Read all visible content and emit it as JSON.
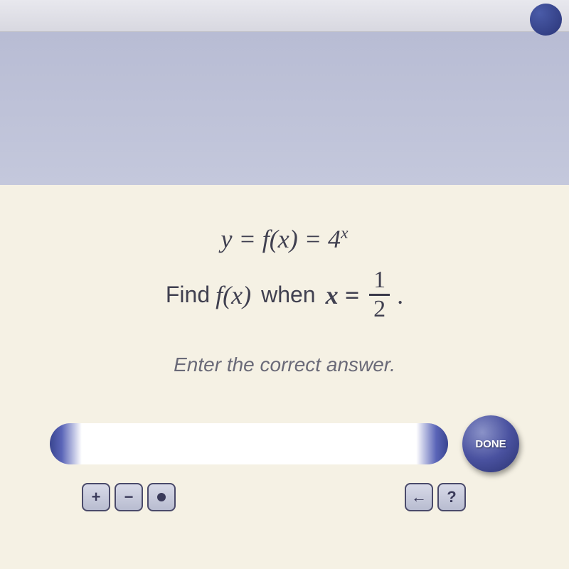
{
  "equation": {
    "line1_lhs": "y = f(x) = 4",
    "line1_exp": "x",
    "find_label": "Find",
    "fx_label": "f(x)",
    "when_label": "when",
    "x_eq_label": "x =",
    "frac_num": "1",
    "frac_den": "2",
    "period": "."
  },
  "instruction_text": "Enter the correct answer.",
  "done_label": "DONE",
  "tool_labels": {
    "plus": "+",
    "minus": "−",
    "back": "←",
    "help": "?"
  },
  "colors": {
    "header_band": "#b8bcd4",
    "content_bg": "#f5f1e4",
    "text_color": "#3a3a4a",
    "instruction_color": "#6a6a78",
    "button_gradient_light": "#8a92c8",
    "button_gradient_dark": "#2a3270",
    "input_accent": "#3a4590"
  }
}
